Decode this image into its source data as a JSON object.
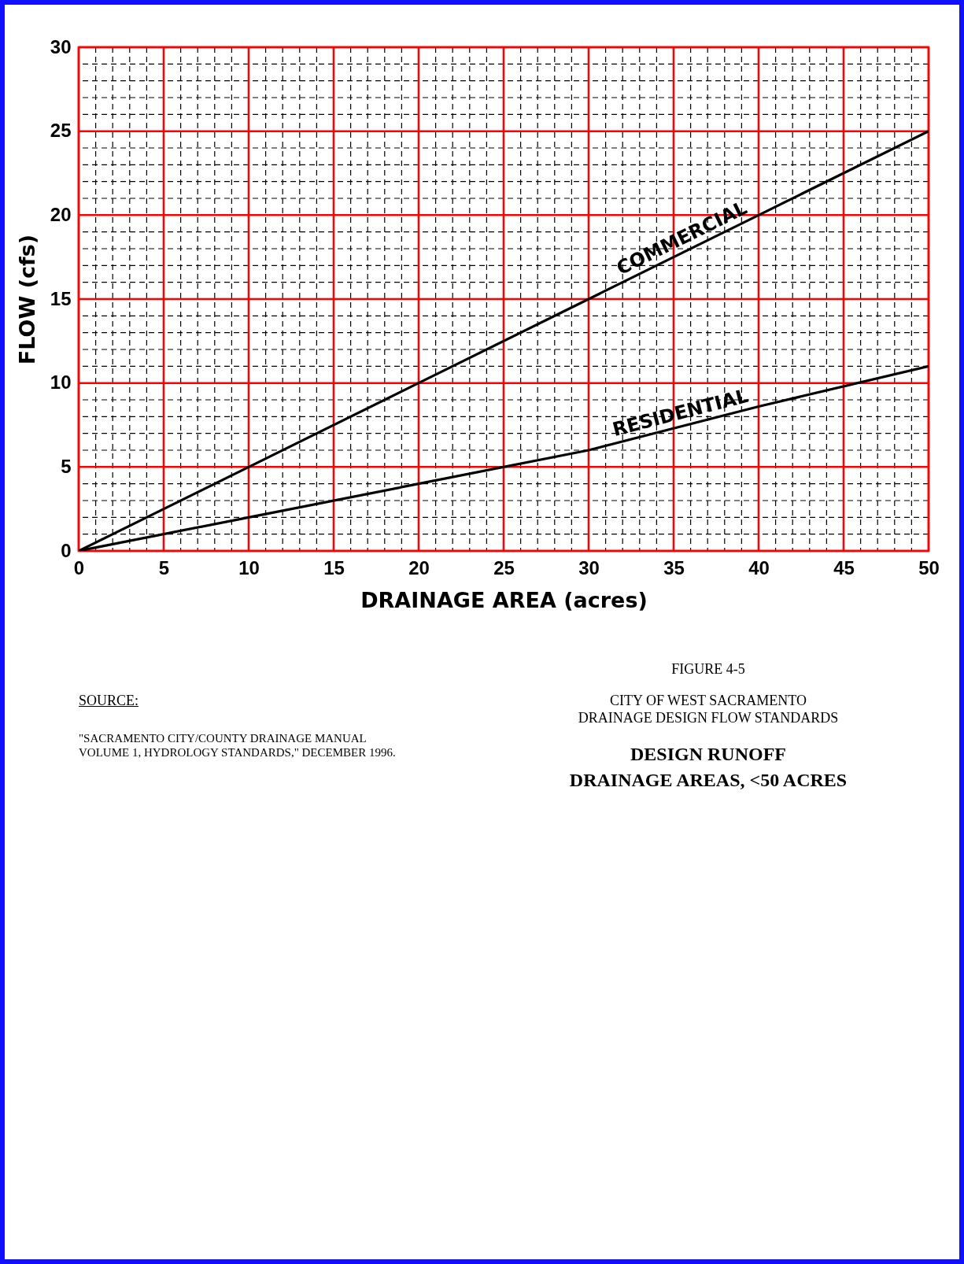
{
  "chart_data": {
    "type": "line",
    "xlabel": "DRAINAGE AREA (acres)",
    "ylabel": "FLOW (cfs)",
    "x": [
      0,
      10,
      20,
      30,
      40,
      50
    ],
    "series": [
      {
        "name": "COMMERCIAL",
        "color": "#000000",
        "values": [
          0,
          5,
          10,
          15,
          20,
          25
        ]
      },
      {
        "name": "RESIDENTIAL",
        "color": "#000000",
        "values": [
          0,
          2,
          4,
          6,
          8.6,
          11
        ]
      }
    ],
    "xlim": [
      0,
      50
    ],
    "xticks": [
      0,
      {
        "value": 1,
        "label": null
      },
      {
        "value": 2,
        "label": null
      },
      {
        "value": 3,
        "label": null
      },
      {
        "value": 4,
        "label": null
      },
      5,
      {
        "value": 6,
        "label": null
      },
      {
        "value": 7,
        "label": null
      },
      {
        "value": 8,
        "label": null
      },
      {
        "value": 9,
        "label": null
      },
      10,
      {
        "value": 11,
        "label": null
      },
      {
        "value": 12,
        "label": null
      },
      {
        "value": 13,
        "label": null
      },
      {
        "value": 14,
        "label": null
      },
      15,
      {
        "value": 16,
        "label": null
      },
      {
        "value": 17,
        "label": null
      },
      {
        "value": 18,
        "label": null
      },
      {
        "value": 19,
        "label": null
      },
      20,
      {
        "value": 21,
        "label": null
      },
      {
        "value": 22,
        "label": null
      },
      {
        "value": 23,
        "label": null
      },
      {
        "value": 24,
        "label": null
      },
      25,
      {
        "value": 26,
        "label": null
      },
      {
        "value": 27,
        "label": null
      },
      {
        "value": 28,
        "label": null
      },
      {
        "value": 29,
        "label": null
      },
      30,
      {
        "value": 31,
        "label": null
      },
      {
        "value": 32,
        "label": null
      },
      {
        "value": 33,
        "label": null
      },
      {
        "value": 34,
        "label": null
      },
      35,
      {
        "value": 36,
        "label": null
      },
      {
        "value": 37,
        "label": null
      },
      {
        "value": 38,
        "label": null
      },
      {
        "value": 39,
        "label": null
      },
      40,
      {
        "value": 41,
        "label": null
      },
      {
        "value": 42,
        "label": null
      },
      {
        "value": 43,
        "label": null
      },
      {
        "value": 44,
        "label": null
      },
      45,
      {
        "value": 46,
        "label": null
      },
      {
        "value": 47,
        "label": null
      },
      {
        "value": 48,
        "label": null
      },
      {
        "value": 49,
        "label": null
      },
      50
    ],
    "ylim": [
      0,
      30
    ],
    "yticks": [
      0,
      {
        "value": 1,
        "label": null
      },
      {
        "value": 2,
        "label": null
      },
      {
        "value": 3,
        "label": null
      },
      {
        "value": 4,
        "label": null
      },
      5,
      {
        "value": 6,
        "label": null
      },
      {
        "value": 7,
        "label": null
      },
      {
        "value": 8,
        "label": null
      },
      {
        "value": 9,
        "label": null
      },
      10,
      {
        "value": 11,
        "label": null
      },
      {
        "value": 12,
        "label": null
      },
      {
        "value": 13,
        "label": null
      },
      {
        "value": 14,
        "label": null
      },
      15,
      {
        "value": 16,
        "label": null
      },
      {
        "value": 17,
        "label": null
      },
      {
        "value": 18,
        "label": null
      },
      {
        "value": 19,
        "label": null
      },
      20,
      {
        "value": 21,
        "label": null
      },
      {
        "value": 22,
        "label": null
      },
      {
        "value": 23,
        "label": null
      },
      {
        "value": 24,
        "label": null
      },
      25,
      {
        "value": 26,
        "label": null
      },
      {
        "value": 27,
        "label": null
      },
      {
        "value": 28,
        "label": null
      },
      {
        "value": 29,
        "label": null
      },
      30
    ],
    "grid": true,
    "marker": "none",
    "line_style": "solid",
    "annotations": [
      "FIGURE 4-5",
      "CITY OF WEST SACRAMENTO",
      "DRAINAGE DESIGN FLOW STANDARDS",
      "DESIGN RUNOFF",
      "DRAINAGE AREAS, <50 ACRES",
      "SOURCE:",
      "\"SACRAMENTO CITY/COUNTY DRAINAGE MANUAL",
      "VOLUME 1, HYDROLOGY STANDARDS,\" DECEMBER 1996."
    ]
  }
}
